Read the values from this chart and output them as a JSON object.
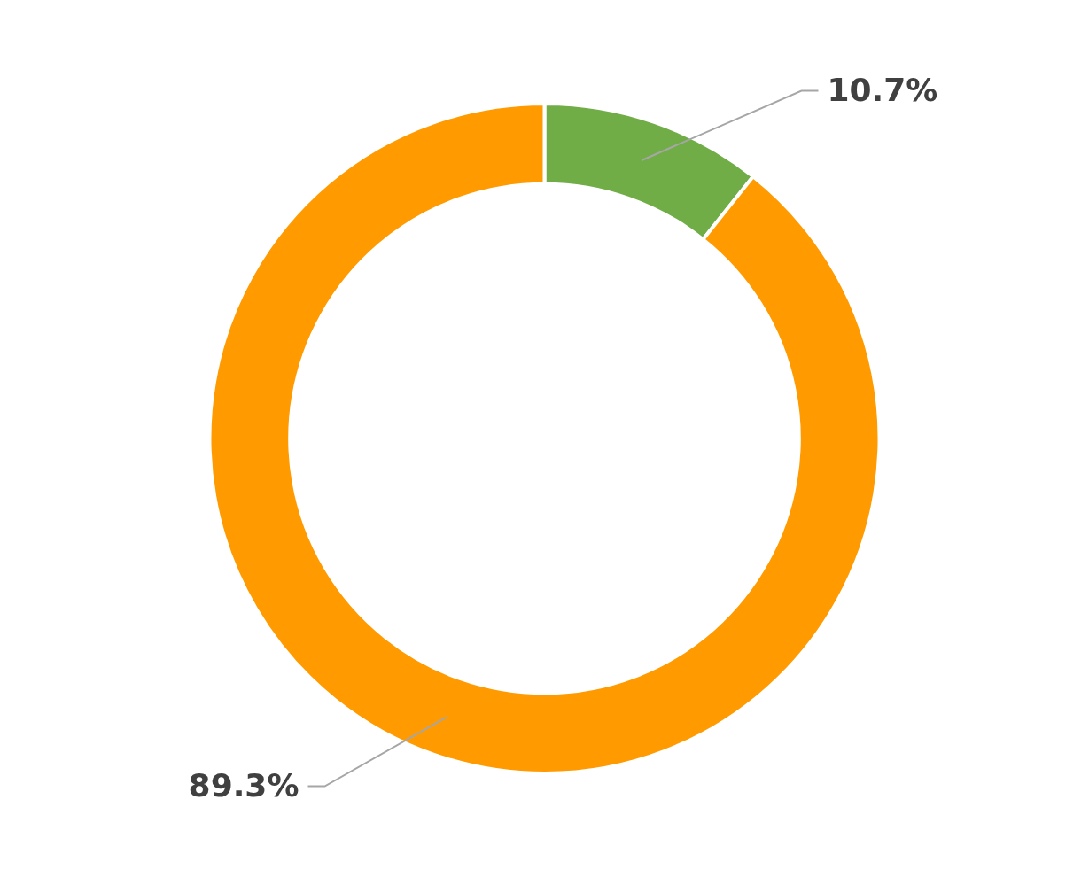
{
  "chart_data": {
    "type": "donut",
    "categories": [
      null,
      null
    ],
    "values": [
      10.7,
      89.3
    ],
    "colors": [
      "#70ad47",
      "#ff9b00"
    ],
    "value_labels": [
      "10.7%",
      "89.3%"
    ],
    "legend": false
  }
}
